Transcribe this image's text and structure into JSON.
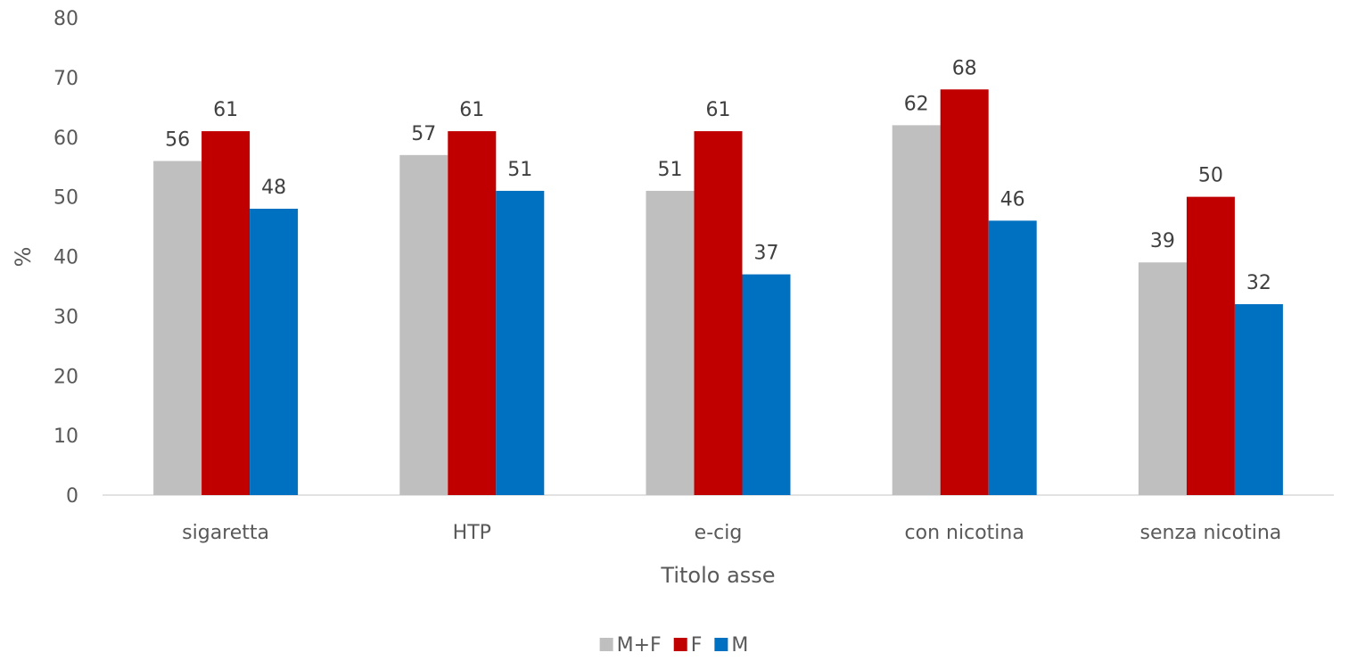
{
  "chart_data": {
    "type": "bar",
    "title": "",
    "xlabel": "Titolo asse",
    "ylabel": "%",
    "ylim": [
      0,
      80
    ],
    "ytick_step": 10,
    "grid": false,
    "legend_position": "bottom",
    "categories": [
      "sigaretta",
      "HTP",
      "e-cig",
      "con nicotina",
      "senza nicotina"
    ],
    "series": [
      {
        "name": "M+F",
        "color": "#bfbfbf",
        "values": [
          56,
          57,
          51,
          62,
          39
        ]
      },
      {
        "name": "F",
        "color": "#c00000",
        "values": [
          61,
          61,
          61,
          68,
          50
        ]
      },
      {
        "name": "M",
        "color": "#0070c0",
        "values": [
          48,
          51,
          37,
          46,
          32
        ]
      }
    ],
    "data_labels": true
  }
}
